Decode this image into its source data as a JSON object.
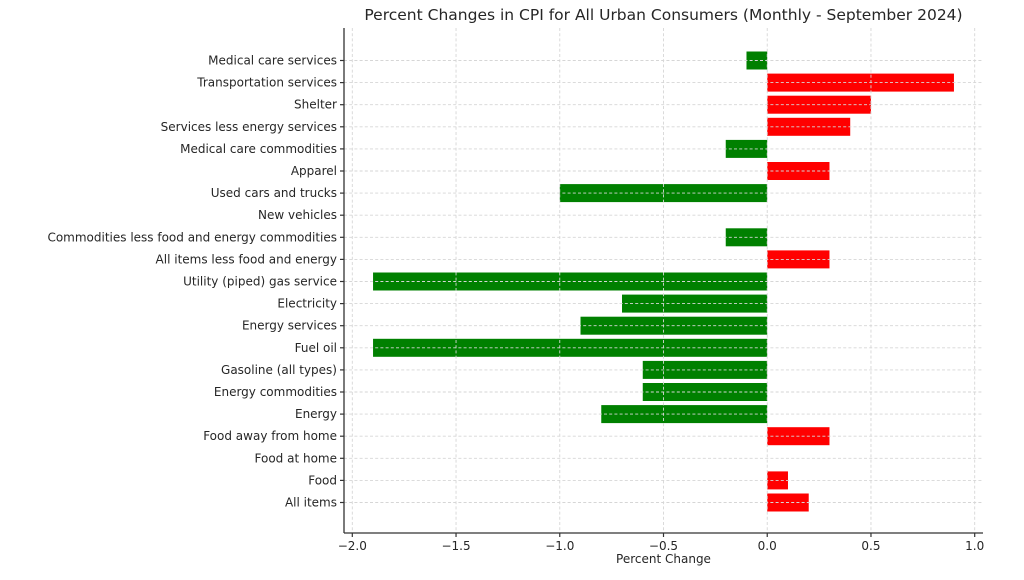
{
  "chart_data": {
    "type": "bar",
    "orientation": "horizontal",
    "title": "Percent Changes in CPI for All Urban Consumers (Monthly - September 2024)",
    "xlabel": "Percent Change",
    "ylabel": "",
    "categories": [
      "Medical care services",
      "Transportation services",
      "Shelter",
      "Services less energy services",
      "Medical care commodities",
      "Apparel",
      "Used cars and trucks",
      "New vehicles",
      "Commodities less food and energy commodities",
      "All items less food and energy",
      "Utility (piped) gas service",
      "Electricity",
      "Energy services",
      "Fuel oil",
      "Gasoline (all types)",
      "Energy commodities",
      "Energy",
      "Food away from home",
      "Food at home",
      "Food",
      "All items"
    ],
    "values": [
      -0.1,
      0.9,
      0.5,
      0.4,
      -0.2,
      0.3,
      -1.0,
      0.0,
      -0.2,
      0.3,
      -1.9,
      -0.7,
      -0.9,
      -1.9,
      -0.6,
      -0.6,
      -0.8,
      0.3,
      0.0,
      0.1,
      0.2
    ],
    "bar_colors": {
      "positive": "#ff0000",
      "negative": "#008000"
    },
    "xlim": [
      -2.04,
      1.04
    ],
    "xticks": [
      -2.0,
      -1.5,
      -1.0,
      -0.5,
      0.0,
      0.5,
      1.0
    ],
    "xtick_labels": [
      "−2.0",
      "−1.5",
      "−1.0",
      "−0.5",
      "0.0",
      "0.5",
      "1.0"
    ],
    "grid": "dashed gridlines on both axes, drawn above bars",
    "legend_position": "none"
  },
  "figure": {
    "background_color": "#ffffff",
    "text_color": "#262626",
    "grid_color": "#d6d6d6",
    "spine_color": "#333333"
  }
}
